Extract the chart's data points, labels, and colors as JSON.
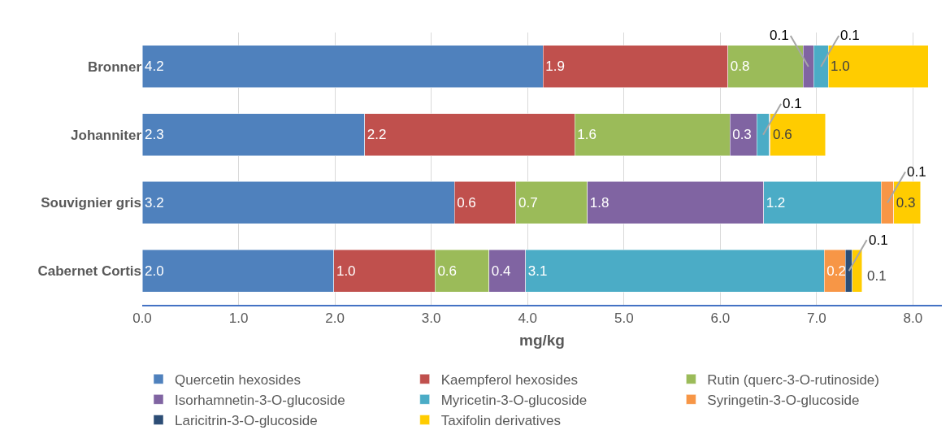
{
  "chart_data": {
    "type": "bar",
    "orientation": "horizontal",
    "stacked": true,
    "xlabel": "mg/kg",
    "categories": [
      "Bronner",
      "Johanniter",
      "Souvignier gris",
      "Cabernet Cortis"
    ],
    "series": [
      {
        "name": "Quercetin hexosides",
        "color": "#4f81bd",
        "values": [
          4.16,
          2.31,
          3.24,
          1.99
        ],
        "value_labels": [
          "4.2",
          "2.3",
          "3.2",
          "2.0"
        ]
      },
      {
        "name": "Kaempferol hexosides",
        "color": "#c0504d",
        "values": [
          1.92,
          2.18,
          0.64,
          1.05
        ],
        "value_labels": [
          "1.9",
          "2.2",
          "0.6",
          "1.0"
        ]
      },
      {
        "name": "Rutin (querc-3-O-rutinoside)",
        "color": "#9bbb59",
        "values": [
          0.78,
          1.61,
          0.74,
          0.56
        ],
        "value_labels": [
          "0.8",
          "1.6",
          "0.7",
          "0.6"
        ]
      },
      {
        "name": "Isorhamnetin-3-O-glucoside",
        "color": "#8064a2",
        "values": [
          0.11,
          0.28,
          1.83,
          0.38
        ],
        "value_labels": [
          "0.1",
          "0.3",
          "1.8",
          "0.4"
        ]
      },
      {
        "name": "Myricetin-3-O-glucoside",
        "color": "#4bacc6",
        "values": [
          0.15,
          0.13,
          1.22,
          3.1
        ],
        "value_labels": [
          "0.1",
          "0.1",
          "1.2",
          "3.1"
        ]
      },
      {
        "name": "Syringetin-3-O-glucoside",
        "color": "#f79646",
        "values": [
          null,
          0.01,
          0.13,
          0.22
        ],
        "value_labels": [
          null,
          null,
          "0.1",
          "0.2"
        ]
      },
      {
        "name": "Laricitrin-3-O-glucoside",
        "color": "#2c4d75",
        "values": [
          null,
          null,
          null,
          0.07
        ],
        "value_labels": [
          null,
          null,
          null,
          "0.1"
        ]
      },
      {
        "name": "Taxifolin derivatives",
        "color": "#ffcc00",
        "values": [
          1.04,
          0.57,
          0.28,
          0.1
        ],
        "value_labels": [
          "1.0",
          "0.6",
          "0.3",
          "0.1"
        ]
      }
    ],
    "xlim": [
      0,
      8.3
    ],
    "xticks": [
      {
        "value": 0,
        "label": "0.0"
      },
      {
        "value": 1,
        "label": "1.0"
      },
      {
        "value": 2,
        "label": "2.0"
      },
      {
        "value": 3,
        "label": "3.0"
      },
      {
        "value": 4,
        "label": "4.0"
      },
      {
        "value": 5,
        "label": "5.0"
      },
      {
        "value": 6,
        "label": "6.0"
      },
      {
        "value": 7,
        "label": "7.0"
      },
      {
        "value": 8,
        "label": "8.0"
      }
    ],
    "grid": "x",
    "legend": "bottom"
  }
}
